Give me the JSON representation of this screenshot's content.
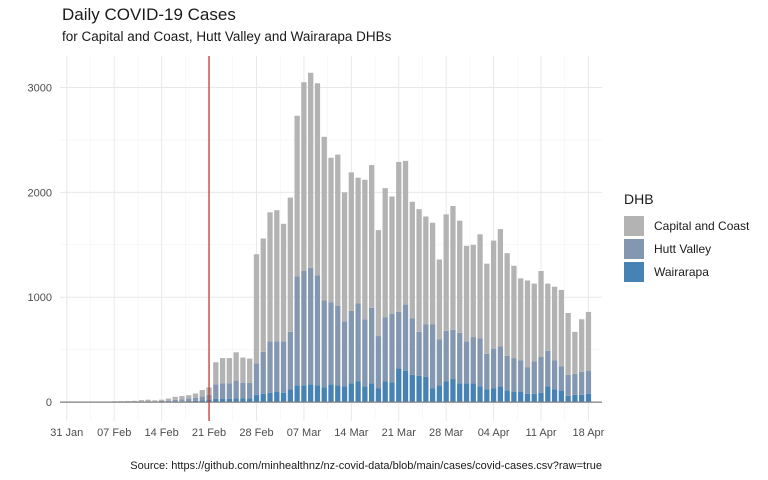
{
  "title": "Daily COVID-19 Cases",
  "subtitle": "for Capital and Coast, Hutt Valley and Wairarapa DHBs",
  "caption": "Source: https://github.com/minhealthnz/nz-covid-data/blob/main/cases/covid-cases.csv?raw=true",
  "legend": {
    "title": "DHB",
    "items": [
      {
        "label": "Capital and Coast",
        "color": "#b3b3b3"
      },
      {
        "label": "Hutt Valley",
        "color": "#8497b0"
      },
      {
        "label": "Wairarapa",
        "color": "#4682b4"
      }
    ]
  },
  "chart_data": {
    "type": "bar",
    "stacked": true,
    "x": [
      "2022-01-31",
      "2022-02-01",
      "2022-02-02",
      "2022-02-03",
      "2022-02-04",
      "2022-02-05",
      "2022-02-06",
      "2022-02-07",
      "2022-02-08",
      "2022-02-09",
      "2022-02-10",
      "2022-02-11",
      "2022-02-12",
      "2022-02-13",
      "2022-02-14",
      "2022-02-15",
      "2022-02-16",
      "2022-02-17",
      "2022-02-18",
      "2022-02-19",
      "2022-02-20",
      "2022-02-21",
      "2022-02-22",
      "2022-02-23",
      "2022-02-24",
      "2022-02-25",
      "2022-02-26",
      "2022-02-27",
      "2022-02-28",
      "2022-03-01",
      "2022-03-02",
      "2022-03-03",
      "2022-03-04",
      "2022-03-05",
      "2022-03-06",
      "2022-03-07",
      "2022-03-08",
      "2022-03-09",
      "2022-03-10",
      "2022-03-11",
      "2022-03-12",
      "2022-03-13",
      "2022-03-14",
      "2022-03-15",
      "2022-03-16",
      "2022-03-17",
      "2022-03-18",
      "2022-03-19",
      "2022-03-20",
      "2022-03-21",
      "2022-03-22",
      "2022-03-23",
      "2022-03-24",
      "2022-03-25",
      "2022-03-26",
      "2022-03-27",
      "2022-03-28",
      "2022-03-29",
      "2022-03-30",
      "2022-03-31",
      "2022-04-01",
      "2022-04-02",
      "2022-04-03",
      "2022-04-04",
      "2022-04-05",
      "2022-04-06",
      "2022-04-07",
      "2022-04-08",
      "2022-04-09",
      "2022-04-10",
      "2022-04-11",
      "2022-04-12",
      "2022-04-13",
      "2022-04-14",
      "2022-04-15",
      "2022-04-16",
      "2022-04-17",
      "2022-04-18"
    ],
    "x_tick_labels": [
      "31 Jan",
      "07 Feb",
      "14 Feb",
      "21 Feb",
      "28 Feb",
      "07 Mar",
      "14 Mar",
      "21 Mar",
      "28 Mar",
      "04 Apr",
      "11 Apr",
      "18 Apr"
    ],
    "x_range": [
      "2022-01-30",
      "2022-04-20"
    ],
    "y_ticks": [
      0,
      1000,
      2000,
      3000
    ],
    "ylim": [
      -180,
      3300
    ],
    "grid": true,
    "legend_position": "right",
    "vline": {
      "x": "2022-02-21",
      "color": "#c0392b"
    },
    "series": [
      {
        "name": "Capital and Coast",
        "color": "#b3b3b3",
        "values": [
          2,
          2,
          2,
          3,
          3,
          3,
          4,
          5,
          6,
          7,
          8,
          12,
          14,
          10,
          12,
          20,
          28,
          30,
          32,
          40,
          60,
          70,
          210,
          240,
          240,
          270,
          240,
          230,
          1040,
          1080,
          1230,
          1250,
          1120,
          1280,
          1530,
          1800,
          1860,
          1830,
          1560,
          1380,
          1440,
          1230,
          1320,
          1200,
          1330,
          1360,
          1010,
          1230,
          1120,
          1430,
          1370,
          1110,
          1170,
          1030,
          970,
          760,
          1110,
          1180,
          1070,
          910,
          880,
          990,
          860,
          1030,
          1120,
          980,
          880,
          780,
          830,
          740,
          820,
          640,
          700,
          730,
          590,
          400,
          500,
          560
        ]
      },
      {
        "name": "Hutt Valley",
        "color": "#8497b0",
        "values": [
          1,
          1,
          1,
          1,
          1,
          1,
          1,
          2,
          2,
          2,
          3,
          5,
          6,
          5,
          8,
          10,
          16,
          20,
          24,
          30,
          40,
          50,
          140,
          150,
          150,
          170,
          150,
          150,
          300,
          400,
          490,
          480,
          490,
          550,
          1040,
          1090,
          1110,
          1050,
          830,
          780,
          760,
          620,
          690,
          740,
          640,
          720,
          500,
          610,
          650,
          540,
          630,
          540,
          420,
          500,
          610,
          440,
          480,
          470,
          480,
          400,
          440,
          460,
          340,
          380,
          380,
          330,
          320,
          300,
          250,
          310,
          340,
          340,
          280,
          230,
          200,
          200,
          220,
          220
        ]
      },
      {
        "name": "Wairarapa",
        "color": "#4682b4",
        "values": [
          0,
          0,
          0,
          0,
          0,
          0,
          0,
          1,
          1,
          1,
          1,
          2,
          3,
          2,
          3,
          4,
          6,
          8,
          10,
          12,
          15,
          20,
          30,
          30,
          30,
          35,
          35,
          35,
          70,
          80,
          90,
          100,
          90,
          120,
          160,
          160,
          170,
          160,
          140,
          170,
          160,
          150,
          180,
          200,
          150,
          180,
          130,
          200,
          190,
          320,
          300,
          260,
          250,
          240,
          130,
          160,
          200,
          220,
          180,
          180,
          180,
          150,
          120,
          130,
          150,
          110,
          100,
          100,
          80,
          80,
          90,
          150,
          120,
          110,
          60,
          70,
          70,
          80
        ]
      }
    ]
  }
}
